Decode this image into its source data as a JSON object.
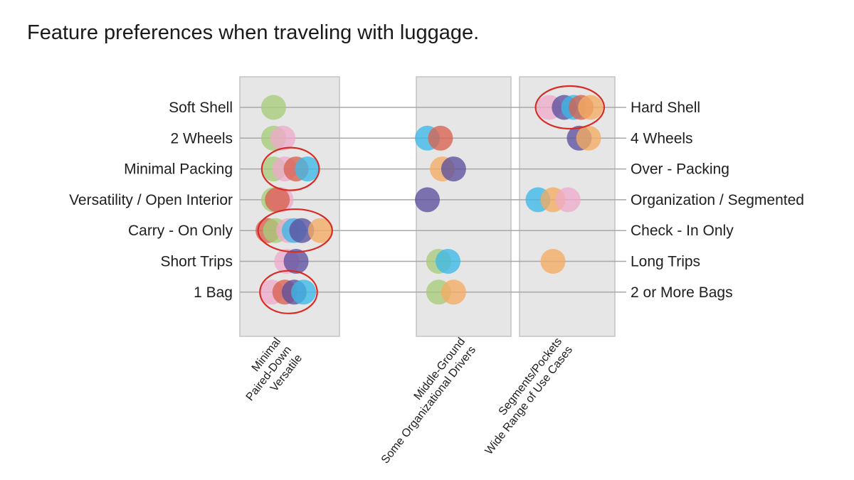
{
  "title": "Feature preferences when traveling with luggage.",
  "chart_data": {
    "type": "scatter",
    "title": "Feature preferences when traveling with luggage.",
    "rows": [
      {
        "left": "Soft Shell",
        "right": "Hard Shell"
      },
      {
        "left": "2 Wheels",
        "right": "4 Wheels"
      },
      {
        "left": "Minimal Packing",
        "right": "Over - Packing"
      },
      {
        "left": "Versatility / Open Interior",
        "right": "Organization / Segmented"
      },
      {
        "left": "Carry - On Only",
        "right": "Check - In Only"
      },
      {
        "left": "Short Trips",
        "right": "Long Trips"
      },
      {
        "left": "1 Bag",
        "right": "2 or More Bags"
      }
    ],
    "groups": [
      {
        "lines": [
          "Minimal",
          "Paired-Down",
          "Versatile"
        ]
      },
      {
        "lines": [
          "Middle-Ground",
          "Some Organizational Drivers"
        ]
      },
      {
        "lines": [
          "Segments/Pockets",
          "Wide Range of Use Cases"
        ]
      }
    ],
    "scale": {
      "min": 0,
      "max": 1,
      "left_pole": "left label",
      "right_pole": "right label"
    },
    "series_colors": {
      "green": "#a6cc7a",
      "pink": "#eeaaca",
      "red": "#d9624f",
      "blue": "#3cb8e8",
      "purple": "#5b4f9e",
      "orange": "#f4ac62"
    },
    "points": [
      {
        "row": 0,
        "color": "green",
        "value": 0.09
      },
      {
        "row": 0,
        "color": "pink",
        "value": 0.825
      },
      {
        "row": 0,
        "color": "purple",
        "value": 0.865
      },
      {
        "row": 0,
        "color": "blue",
        "value": 0.89
      },
      {
        "row": 0,
        "color": "red",
        "value": 0.91
      },
      {
        "row": 0,
        "color": "orange",
        "value": 0.935
      },
      {
        "row": 1,
        "color": "green",
        "value": 0.09
      },
      {
        "row": 1,
        "color": "pink",
        "value": 0.115
      },
      {
        "row": 1,
        "color": "blue",
        "value": 0.5
      },
      {
        "row": 1,
        "color": "red",
        "value": 0.535
      },
      {
        "row": 1,
        "color": "purple",
        "value": 0.905
      },
      {
        "row": 1,
        "color": "orange",
        "value": 0.93
      },
      {
        "row": 2,
        "color": "green",
        "value": 0.09
      },
      {
        "row": 2,
        "color": "pink",
        "value": 0.12
      },
      {
        "row": 2,
        "color": "red",
        "value": 0.15
      },
      {
        "row": 2,
        "color": "blue",
        "value": 0.18
      },
      {
        "row": 2,
        "color": "orange",
        "value": 0.54
      },
      {
        "row": 2,
        "color": "purple",
        "value": 0.57
      },
      {
        "row": 3,
        "color": "green",
        "value": 0.09
      },
      {
        "row": 3,
        "color": "pink",
        "value": 0.11
      },
      {
        "row": 3,
        "color": "red",
        "value": 0.1
      },
      {
        "row": 3,
        "color": "purple",
        "value": 0.5
      },
      {
        "row": 3,
        "color": "blue",
        "value": 0.795
      },
      {
        "row": 3,
        "color": "orange",
        "value": 0.835
      },
      {
        "row": 3,
        "color": "pink",
        "value": 0.875
      },
      {
        "row": 4,
        "color": "red",
        "value": 0.075
      },
      {
        "row": 4,
        "color": "green",
        "value": 0.095
      },
      {
        "row": 4,
        "color": "pink",
        "value": 0.13
      },
      {
        "row": 4,
        "color": "blue",
        "value": 0.145
      },
      {
        "row": 4,
        "color": "purple",
        "value": 0.165
      },
      {
        "row": 4,
        "color": "orange",
        "value": 0.215
      },
      {
        "row": 5,
        "color": "pink",
        "value": 0.125
      },
      {
        "row": 5,
        "color": "purple",
        "value": 0.15
      },
      {
        "row": 5,
        "color": "green",
        "value": 0.53
      },
      {
        "row": 5,
        "color": "blue",
        "value": 0.555
      },
      {
        "row": 5,
        "color": "orange",
        "value": 0.835
      },
      {
        "row": 6,
        "color": "pink",
        "value": 0.085
      },
      {
        "row": 6,
        "color": "red",
        "value": 0.12
      },
      {
        "row": 6,
        "color": "purple",
        "value": 0.145
      },
      {
        "row": 6,
        "color": "blue",
        "value": 0.17
      },
      {
        "row": 6,
        "color": "green",
        "value": 0.53
      },
      {
        "row": 6,
        "color": "orange",
        "value": 0.57
      }
    ],
    "highlights": [
      {
        "row": 0,
        "from": 0.8,
        "to": 0.96
      },
      {
        "row": 2,
        "from": 0.07,
        "to": 0.2
      },
      {
        "row": 4,
        "from": 0.06,
        "to": 0.235
      },
      {
        "row": 6,
        "from": 0.065,
        "to": 0.195
      }
    ],
    "highlight_color": "#d92b25",
    "panel_color": "#e6e6e6",
    "panel_border": "#c4c4c4",
    "line_color": "#a8a8a8"
  }
}
